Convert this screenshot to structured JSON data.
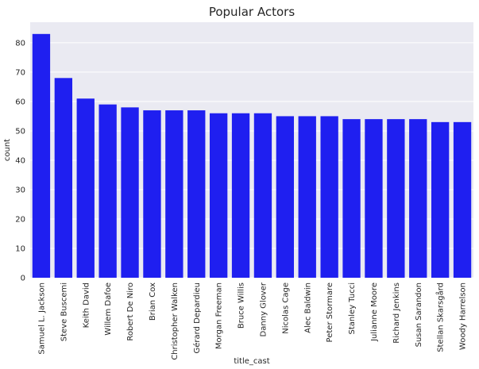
{
  "chart_data": {
    "type": "bar",
    "title": "Popular Actors",
    "xlabel": "title_cast",
    "ylabel": "count",
    "categories": [
      "Samuel L. Jackson",
      "Steve Buscemi",
      "Keith David",
      "Willem Dafoe",
      "Robert De Niro",
      "Brian Cox",
      "Christopher Walken",
      "Gérard Depardieu",
      "Morgan Freeman",
      "Bruce Willis",
      "Danny Glover",
      "Nicolas Cage",
      "Alec Baldwin",
      "Peter Stormare",
      "Stanley Tucci",
      "Julianne Moore",
      "Richard Jenkins",
      "Susan Sarandon",
      "Stellan Skarsgård",
      "Woody Harrelson"
    ],
    "values": [
      83,
      68,
      61,
      59,
      58,
      57,
      57,
      57,
      56,
      56,
      56,
      55,
      55,
      55,
      54,
      54,
      54,
      54,
      53,
      53
    ],
    "ylim": [
      0,
      87
    ],
    "yticks": [
      0,
      10,
      20,
      30,
      40,
      50,
      60,
      70,
      80
    ],
    "grid": true,
    "colors": {
      "bar": "#1f1ff0",
      "plot_background": "#eaeaf2",
      "grid": "#ffffff",
      "text": "#262626"
    }
  }
}
